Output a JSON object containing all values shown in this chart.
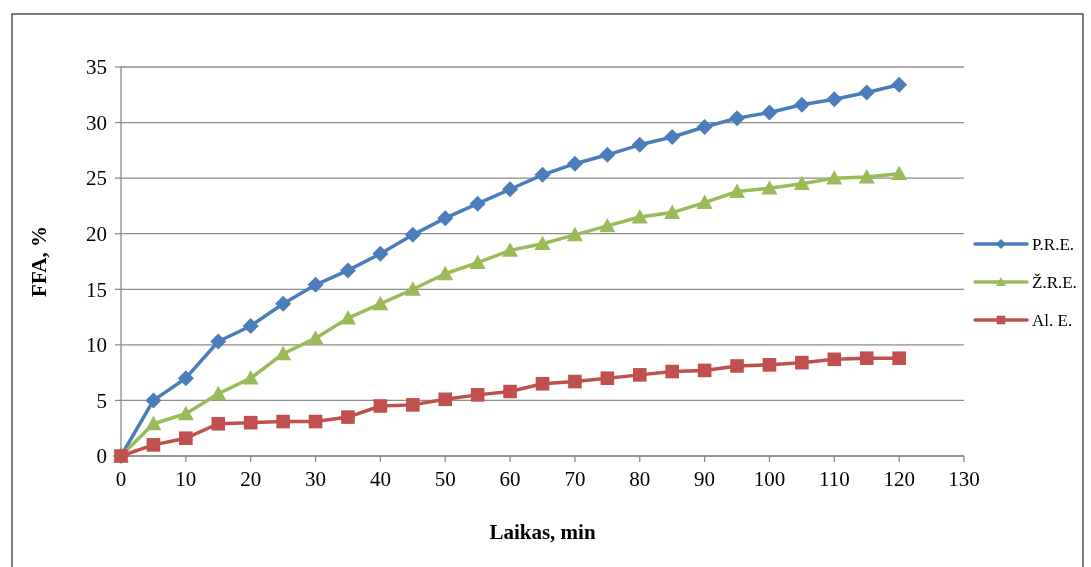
{
  "chart_data": {
    "type": "line",
    "xlabel": "Laikas, min",
    "ylabel": "FFA, %",
    "x": [
      0,
      5,
      10,
      15,
      20,
      25,
      30,
      35,
      40,
      45,
      50,
      55,
      60,
      65,
      70,
      75,
      80,
      85,
      90,
      95,
      100,
      105,
      110,
      115,
      120
    ],
    "series": [
      {
        "name": "P.R.E.",
        "color": "#4a7ebb",
        "marker": "diamond",
        "values": [
          0,
          5.0,
          7.0,
          10.3,
          11.7,
          13.7,
          15.4,
          16.7,
          18.2,
          19.9,
          21.4,
          22.7,
          24.0,
          25.3,
          26.3,
          27.1,
          28.0,
          28.7,
          29.6,
          30.4,
          30.9,
          31.6,
          32.1,
          32.7,
          33.4
        ]
      },
      {
        "name": "Ž.R.E.",
        "color": "#9bbb59",
        "marker": "triangle",
        "values": [
          0,
          2.9,
          3.8,
          5.6,
          7.0,
          9.2,
          10.6,
          12.4,
          13.7,
          15.0,
          16.4,
          17.4,
          18.5,
          19.1,
          19.9,
          20.7,
          21.5,
          21.9,
          22.8,
          23.8,
          24.1,
          24.5,
          25.0,
          25.1,
          25.4
        ]
      },
      {
        "name": "Al. E.",
        "color": "#c0504d",
        "marker": "square",
        "values": [
          0,
          1.0,
          1.6,
          2.9,
          3.0,
          3.1,
          3.1,
          3.5,
          4.5,
          4.6,
          5.1,
          5.5,
          5.8,
          6.5,
          6.7,
          7.0,
          7.3,
          7.6,
          7.7,
          8.1,
          8.2,
          8.4,
          8.7,
          8.8,
          8.8
        ]
      }
    ],
    "xlim": [
      0,
      130
    ],
    "xticks": [
      0,
      10,
      20,
      30,
      40,
      50,
      60,
      70,
      80,
      90,
      100,
      110,
      120,
      130
    ],
    "ylim": [
      0,
      35
    ],
    "yticks": [
      0,
      5,
      10,
      15,
      20,
      25,
      30,
      35
    ],
    "grid": "y",
    "legend": "right"
  }
}
